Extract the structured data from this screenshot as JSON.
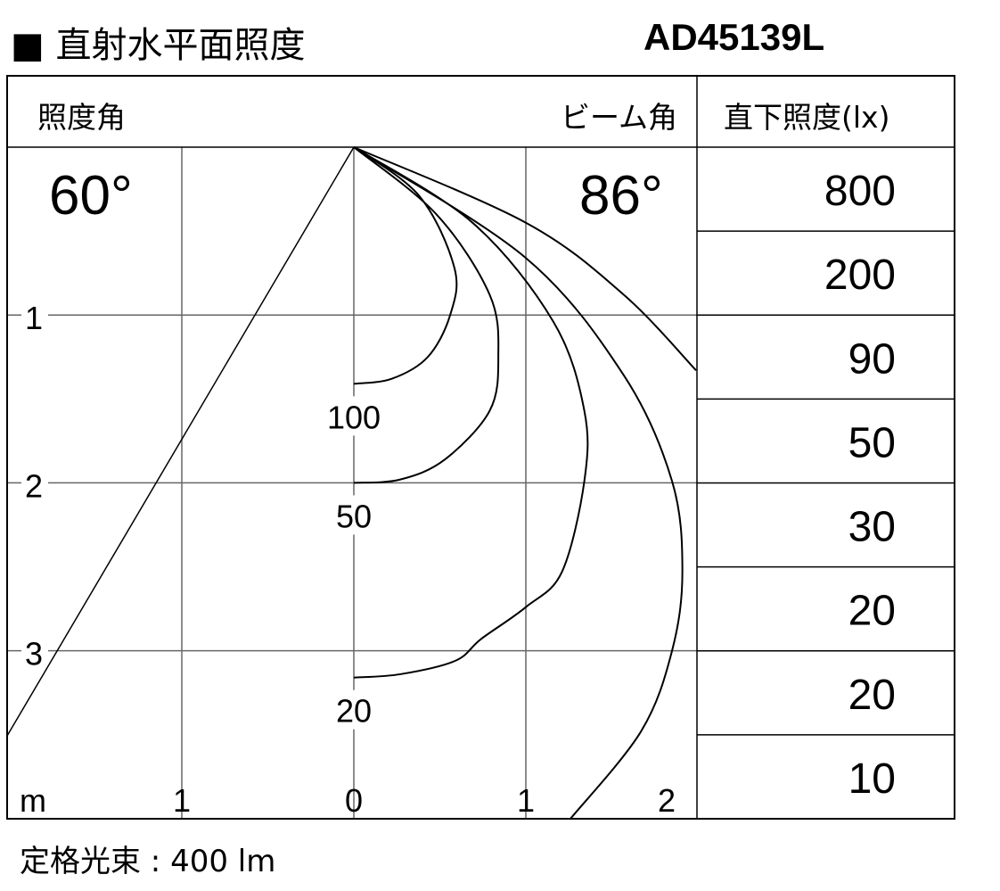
{
  "header": {
    "title": "■ 直射水平面照度",
    "model": "AD45139L"
  },
  "footer": {
    "rated_flux": "定格光束 : 400 lm"
  },
  "chart_data": {
    "type": "line",
    "title": "直射水平面照度",
    "column_headers": {
      "irradiation_angle": "照度角",
      "beam_angle": "ビーム角",
      "direct_illuminance": "直下照度(lx)"
    },
    "irradiation_angle_value": "60°",
    "beam_angle_value": "86°",
    "x_unit": "m",
    "x_ticks": [
      "1",
      "0",
      "1",
      "2"
    ],
    "y_ticks": [
      "1",
      "2",
      "3"
    ],
    "xlim": [
      -2,
      2
    ],
    "ylim": [
      0,
      4
    ],
    "grid": true,
    "beam_half_angle_deg": 30,
    "direct_illuminance_rows": [
      {
        "distance_m": 0.5,
        "lx": "800"
      },
      {
        "distance_m": 1.0,
        "lx": "200"
      },
      {
        "distance_m": 1.5,
        "lx": "90"
      },
      {
        "distance_m": 2.0,
        "lx": "50"
      },
      {
        "distance_m": 2.5,
        "lx": "30"
      },
      {
        "distance_m": 3.0,
        "lx": "20"
      },
      {
        "distance_m": 3.5,
        "lx": "20"
      },
      {
        "distance_m": 4.0,
        "lx": "10"
      }
    ],
    "isolux_curves": [
      {
        "label": "100",
        "points": [
          [
            0,
            0
          ],
          [
            0.38,
            0.29
          ],
          [
            0.585,
            0.72
          ],
          [
            0.56,
            1.0
          ],
          [
            0.43,
            1.25
          ],
          [
            0.22,
            1.38
          ],
          [
            0,
            1.41
          ]
        ]
      },
      {
        "label": "50",
        "points": [
          [
            0,
            0
          ],
          [
            0.48,
            0.4
          ],
          [
            0.79,
            0.88
          ],
          [
            0.84,
            1.25
          ],
          [
            0.79,
            1.57
          ],
          [
            0.53,
            1.86
          ],
          [
            0.27,
            1.98
          ],
          [
            0,
            2.0
          ]
        ]
      },
      {
        "label": "20",
        "points": [
          [
            0,
            0
          ],
          [
            0.69,
            0.45
          ],
          [
            1.16,
            1.04
          ],
          [
            1.34,
            1.57
          ],
          [
            1.34,
            1.99
          ],
          [
            1.21,
            2.53
          ],
          [
            1.0,
            2.74
          ],
          [
            0.74,
            2.93
          ],
          [
            0.59,
            3.06
          ],
          [
            0.27,
            3.14
          ],
          [
            0,
            3.16
          ]
        ]
      },
      {
        "label": "",
        "points": [
          [
            0,
            0
          ],
          [
            1.0,
            0.66
          ],
          [
            1.57,
            1.36
          ],
          [
            1.85,
            1.99
          ],
          [
            1.91,
            2.53
          ],
          [
            1.85,
            3.0
          ],
          [
            1.67,
            3.48
          ],
          [
            1.26,
            4.0
          ]
        ]
      },
      {
        "label": "",
        "points": [
          [
            0,
            0
          ],
          [
            1.0,
            0.45
          ],
          [
            1.57,
            0.88
          ],
          [
            1.99,
            1.33
          ]
        ]
      }
    ]
  }
}
